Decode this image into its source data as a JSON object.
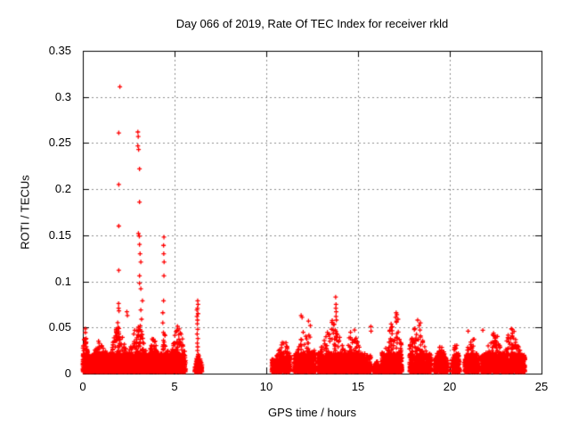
{
  "window": {
    "background": "#ffffff"
  },
  "chart_data": {
    "type": "scatter",
    "title": "Day 066 of 2019, Rate Of TEC Index for receiver rkld",
    "xlabel": "GPS time / hours",
    "ylabel": "ROTI / TECUs",
    "xlim": [
      0,
      25
    ],
    "ylim": [
      0,
      0.35
    ],
    "x_ticks": [
      0,
      5,
      10,
      15,
      20,
      25
    ],
    "x_tick_labels": [
      "0",
      "5",
      "10",
      "15",
      "20",
      "25"
    ],
    "y_ticks": [
      0,
      0.05,
      0.1,
      0.15,
      0.2,
      0.25,
      0.3,
      0.35
    ],
    "y_tick_labels": [
      "0",
      "0.05",
      "0.1",
      "0.15",
      "0.2",
      "0.25",
      "0.3",
      "0.35"
    ],
    "grid": "dashed",
    "legend": "none",
    "marker": "plus",
    "marker_color": "#ff0000",
    "outlier_points": [
      [
        2.02,
        0.311
      ],
      [
        1.96,
        0.261
      ],
      [
        1.96,
        0.205
      ],
      [
        1.96,
        0.16
      ],
      [
        1.96,
        0.112
      ],
      [
        1.95,
        0.076
      ],
      [
        1.95,
        0.071
      ],
      [
        1.97,
        0.068
      ],
      [
        3.0,
        0.262
      ],
      [
        3.02,
        0.257
      ],
      [
        3.0,
        0.247
      ],
      [
        3.04,
        0.243
      ],
      [
        3.09,
        0.222
      ],
      [
        3.09,
        0.186
      ],
      [
        3.03,
        0.152
      ],
      [
        3.08,
        0.149
      ],
      [
        3.09,
        0.14
      ],
      [
        3.12,
        0.13
      ],
      [
        3.16,
        0.121
      ],
      [
        3.09,
        0.106
      ],
      [
        3.09,
        0.098
      ],
      [
        3.16,
        0.092
      ],
      [
        3.25,
        0.079
      ],
      [
        3.16,
        0.069
      ],
      [
        3.2,
        0.059
      ],
      [
        2.4,
        0.067
      ],
      [
        2.43,
        0.063
      ],
      [
        4.42,
        0.148
      ],
      [
        4.4,
        0.139
      ],
      [
        4.41,
        0.13
      ],
      [
        4.43,
        0.121
      ],
      [
        4.42,
        0.106
      ],
      [
        4.4,
        0.079
      ],
      [
        4.36,
        0.066
      ],
      [
        4.36,
        0.055
      ],
      [
        6.26,
        0.079
      ],
      [
        6.28,
        0.075
      ],
      [
        6.25,
        0.071
      ],
      [
        6.22,
        0.069
      ],
      [
        6.28,
        0.065
      ],
      [
        6.22,
        0.062
      ],
      [
        6.25,
        0.058
      ],
      [
        6.24,
        0.054
      ],
      [
        6.26,
        0.048
      ],
      [
        6.23,
        0.043
      ],
      [
        6.27,
        0.038
      ],
      [
        6.24,
        0.033
      ],
      [
        6.26,
        0.029
      ],
      [
        6.25,
        0.025
      ],
      [
        11.9,
        0.063
      ],
      [
        11.95,
        0.061
      ],
      [
        12.3,
        0.057
      ],
      [
        12.4,
        0.052
      ],
      [
        13.78,
        0.083
      ],
      [
        13.8,
        0.075
      ],
      [
        13.79,
        0.071
      ],
      [
        13.81,
        0.067
      ],
      [
        13.8,
        0.062
      ],
      [
        13.82,
        0.058
      ],
      [
        15.7,
        0.051
      ],
      [
        15.71,
        0.046
      ],
      [
        17.08,
        0.066
      ],
      [
        17.12,
        0.064
      ],
      [
        17.05,
        0.061
      ],
      [
        17.18,
        0.059
      ],
      [
        17.1,
        0.057
      ],
      [
        18.25,
        0.058
      ],
      [
        18.4,
        0.055
      ],
      [
        18.33,
        0.052
      ],
      [
        21.0,
        0.046
      ],
      [
        21.8,
        0.047
      ]
    ],
    "dense_clusters": [
      {
        "x0": 0.0,
        "x1": 0.4,
        "n": 260,
        "ymax": 0.05,
        "peak": 0.3
      },
      {
        "x0": 0.4,
        "x1": 1.5,
        "n": 620,
        "ymax": 0.04,
        "peak": 0.5
      },
      {
        "x0": 1.5,
        "x1": 2.5,
        "n": 620,
        "ymax": 0.057,
        "peak": 0.45
      },
      {
        "x0": 2.5,
        "x1": 3.5,
        "n": 620,
        "ymax": 0.06,
        "peak": 0.5
      },
      {
        "x0": 3.5,
        "x1": 4.2,
        "n": 400,
        "ymax": 0.04,
        "peak": 0.5
      },
      {
        "x0": 4.2,
        "x1": 4.7,
        "n": 300,
        "ymax": 0.05,
        "peak": 0.5
      },
      {
        "x0": 4.7,
        "x1": 5.6,
        "n": 470,
        "ymax": 0.056,
        "peak": 0.55
      },
      {
        "x0": 6.1,
        "x1": 6.5,
        "n": 150,
        "ymax": 0.02,
        "peak": 0.5
      },
      {
        "x0": 10.3,
        "x1": 11.3,
        "n": 340,
        "ymax": 0.038,
        "peak": 0.65
      },
      {
        "x0": 11.5,
        "x1": 12.7,
        "n": 500,
        "ymax": 0.052,
        "peak": 0.55
      },
      {
        "x0": 12.8,
        "x1": 14.4,
        "n": 780,
        "ymax": 0.058,
        "peak": 0.5
      },
      {
        "x0": 14.4,
        "x1": 15.7,
        "n": 480,
        "ymax": 0.05,
        "peak": 0.25
      },
      {
        "x0": 15.8,
        "x1": 16.25,
        "n": 90,
        "ymax": 0.012,
        "peak": 0.5
      },
      {
        "x0": 16.3,
        "x1": 17.4,
        "n": 520,
        "ymax": 0.062,
        "peak": 0.6
      },
      {
        "x0": 17.8,
        "x1": 19.0,
        "n": 500,
        "ymax": 0.055,
        "peak": 0.35
      },
      {
        "x0": 19.15,
        "x1": 19.9,
        "n": 300,
        "ymax": 0.032,
        "peak": 0.5
      },
      {
        "x0": 20.1,
        "x1": 20.55,
        "n": 170,
        "ymax": 0.036,
        "peak": 0.5
      },
      {
        "x0": 20.8,
        "x1": 21.6,
        "n": 330,
        "ymax": 0.044,
        "peak": 0.5
      },
      {
        "x0": 21.7,
        "x1": 22.9,
        "n": 540,
        "ymax": 0.048,
        "peak": 0.6
      },
      {
        "x0": 22.9,
        "x1": 24.1,
        "n": 560,
        "ymax": 0.05,
        "peak": 0.4
      }
    ]
  },
  "colors": {
    "marker": "#ff0000",
    "axis": "#000000",
    "grid": "#8c8c8c",
    "text": "#000000",
    "background": "#ffffff"
  }
}
